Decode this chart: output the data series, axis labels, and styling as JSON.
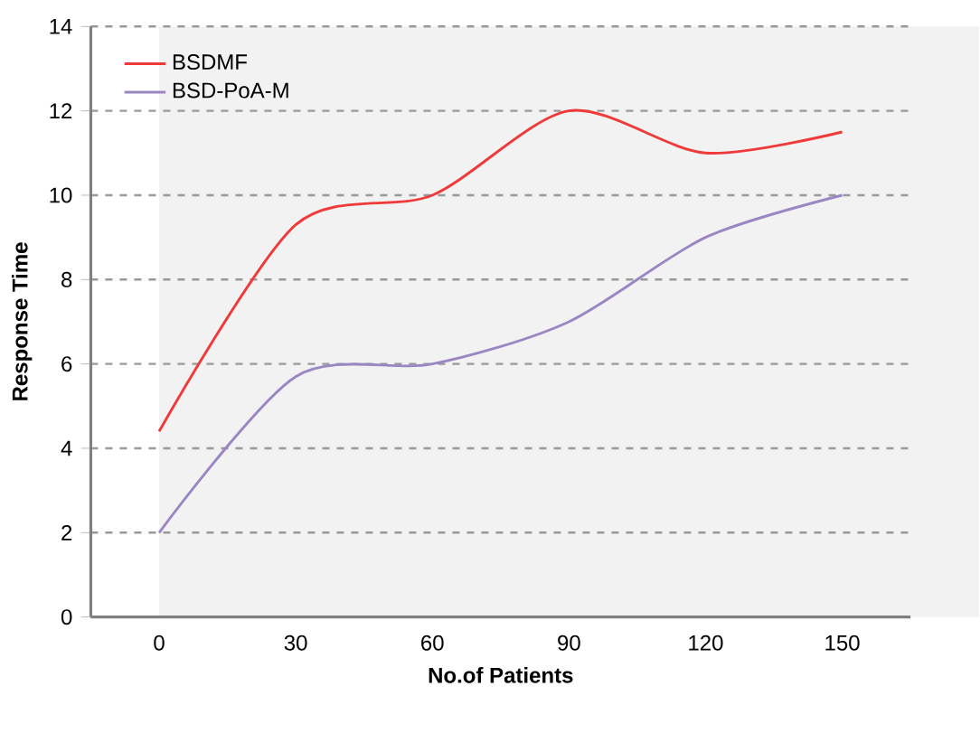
{
  "chart_data": {
    "type": "line",
    "xlabel": "No.of Patients",
    "ylabel": "Response Time",
    "categories": [
      "0",
      "30",
      "60",
      "90",
      "120",
      "150"
    ],
    "series": [
      {
        "name": "BSDMF",
        "color": "#f03a3a",
        "values": [
          4.4,
          9.3,
          10,
          12,
          11,
          11.5
        ]
      },
      {
        "name": "BSD-PoA-M",
        "color": "#9a86c2",
        "values": [
          2,
          5.7,
          6,
          7,
          9,
          10
        ]
      }
    ],
    "ylim": [
      0,
      14
    ],
    "yticks": [
      0,
      2,
      4,
      6,
      8,
      10,
      12,
      14
    ],
    "grid": "y",
    "legend": "top left",
    "marker": "none",
    "line_style": "solid"
  }
}
